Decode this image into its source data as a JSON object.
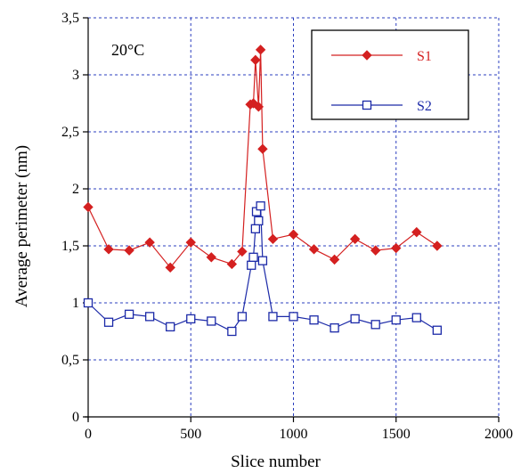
{
  "chart_data": {
    "type": "line",
    "title": "",
    "annotation": "20°C",
    "xlabel": "Slice number",
    "ylabel": "Average perimeter (nm)",
    "xlim": [
      0,
      2000
    ],
    "ylim": [
      0,
      3.5
    ],
    "xticks": [
      0,
      500,
      1000,
      1500,
      2000
    ],
    "yticks": [
      0,
      0.5,
      1,
      1.5,
      2,
      2.5,
      3,
      3.5
    ],
    "xtick_labels": [
      "0",
      "500",
      "1000",
      "1500",
      "2000"
    ],
    "ytick_labels": [
      "0",
      "0,5",
      "1",
      "1,5",
      "2",
      "2,5",
      "3",
      "3,5"
    ],
    "grid": true,
    "legend_position": "top-right",
    "series": [
      {
        "name": "S1",
        "color": "#d42020",
        "marker": "diamond",
        "x": [
          0,
          100,
          200,
          300,
          400,
          500,
          600,
          700,
          750,
          790,
          805,
          815,
          830,
          840,
          850,
          900,
          1000,
          1100,
          1200,
          1300,
          1400,
          1500,
          1600,
          1700
        ],
        "y": [
          1.84,
          1.47,
          1.46,
          1.53,
          1.31,
          1.53,
          1.4,
          1.34,
          1.45,
          2.74,
          2.75,
          3.13,
          2.72,
          3.22,
          2.35,
          1.56,
          1.6,
          1.47,
          1.38,
          1.56,
          1.46,
          1.48,
          1.62,
          1.5
        ]
      },
      {
        "name": "S2",
        "color": "#1c2aa8",
        "marker": "square",
        "x": [
          0,
          100,
          200,
          300,
          400,
          500,
          600,
          700,
          750,
          795,
          805,
          815,
          820,
          830,
          840,
          850,
          900,
          1000,
          1100,
          1200,
          1300,
          1400,
          1500,
          1600,
          1700
        ],
        "y": [
          1.0,
          0.83,
          0.9,
          0.88,
          0.79,
          0.86,
          0.84,
          0.75,
          0.88,
          1.33,
          1.4,
          1.65,
          1.8,
          1.72,
          1.85,
          1.37,
          0.88,
          0.88,
          0.85,
          0.78,
          0.86,
          0.81,
          0.85,
          0.87,
          0.76
        ]
      }
    ]
  }
}
